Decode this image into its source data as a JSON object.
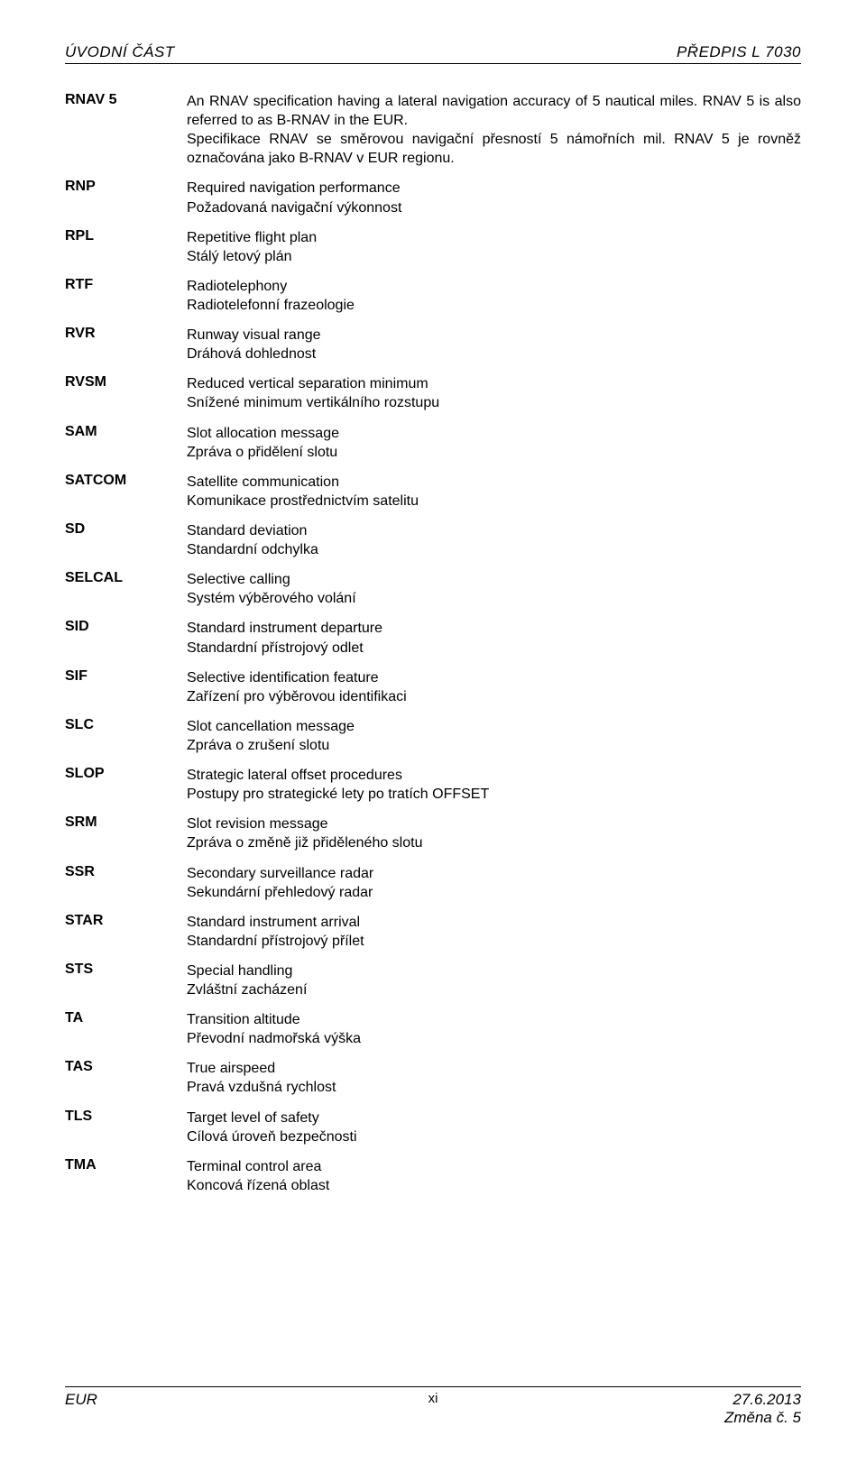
{
  "header": {
    "left": "ÚVODNÍ ČÁST",
    "right": "PŘEDPIS L 7030"
  },
  "entries": [
    {
      "abbr": "RNAV 5",
      "en": "An RNAV specification having a lateral navigation accuracy of 5 nautical miles. RNAV 5 is also referred to as B-RNAV in the EUR.",
      "cz": "Specifikace RNAV se směrovou navigační přesností 5 námořních mil. RNAV 5 je rovněž označována jako B-RNAV v EUR regionu."
    },
    {
      "abbr": "RNP",
      "en": "Required navigation performance",
      "cz": "Požadovaná navigační výkonnost"
    },
    {
      "abbr": "RPL",
      "en": "Repetitive flight plan",
      "cz": "Stálý letový plán"
    },
    {
      "abbr": "RTF",
      "en": "Radiotelephony",
      "cz": "Radiotelefonní frazeologie"
    },
    {
      "abbr": "RVR",
      "en": "Runway visual range",
      "cz": "Dráhová dohlednost"
    },
    {
      "abbr": "RVSM",
      "en": "Reduced vertical separation minimum",
      "cz": "Snížené minimum vertikálního rozstupu"
    },
    {
      "abbr": "SAM",
      "en": "Slot allocation message",
      "cz": "Zpráva o přidělení slotu"
    },
    {
      "abbr": "SATCOM",
      "en": "Satellite communication",
      "cz": "Komunikace prostřednictvím satelitu"
    },
    {
      "abbr": "SD",
      "en": "Standard deviation",
      "cz": "Standardní odchylka"
    },
    {
      "abbr": "SELCAL",
      "en": "Selective calling",
      "cz": "Systém výběrového volání"
    },
    {
      "abbr": "SID",
      "en": "Standard instrument departure",
      "cz": "Standardní přístrojový odlet"
    },
    {
      "abbr": "SIF",
      "en": "Selective identification feature",
      "cz": "Zařízení pro výběrovou identifikaci"
    },
    {
      "abbr": "SLC",
      "en": "Slot cancellation message",
      "cz": "Zpráva o zrušení slotu"
    },
    {
      "abbr": "SLOP",
      "en": "Strategic lateral offset procedures",
      "cz": "Postupy pro strategické lety po tratích OFFSET"
    },
    {
      "abbr": "SRM",
      "en": "Slot revision message",
      "cz": "Zpráva o změně již přiděleného slotu"
    },
    {
      "abbr": "SSR",
      "en": "Secondary surveillance radar",
      "cz": "Sekundární přehledový radar"
    },
    {
      "abbr": "STAR",
      "en": "Standard instrument arrival",
      "cz": "Standardní přístrojový přílet"
    },
    {
      "abbr": "STS",
      "en": "Special handling",
      "cz": "Zvláštní zacházení"
    },
    {
      "abbr": "TA",
      "en": "Transition altitude",
      "cz": "Převodní nadmořská výška"
    },
    {
      "abbr": "TAS",
      "en": "True airspeed",
      "cz": "Pravá vzdušná rychlost"
    },
    {
      "abbr": "TLS",
      "en": "Target level of safety",
      "cz": "Cílová úroveň bezpečnosti"
    },
    {
      "abbr": "TMA",
      "en": "Terminal control area",
      "cz": "Koncová řízená oblast"
    }
  ],
  "footer": {
    "left": "EUR",
    "center": "xi",
    "right_line1": "27.6.2013",
    "right_line2": "Změna č. 5"
  }
}
